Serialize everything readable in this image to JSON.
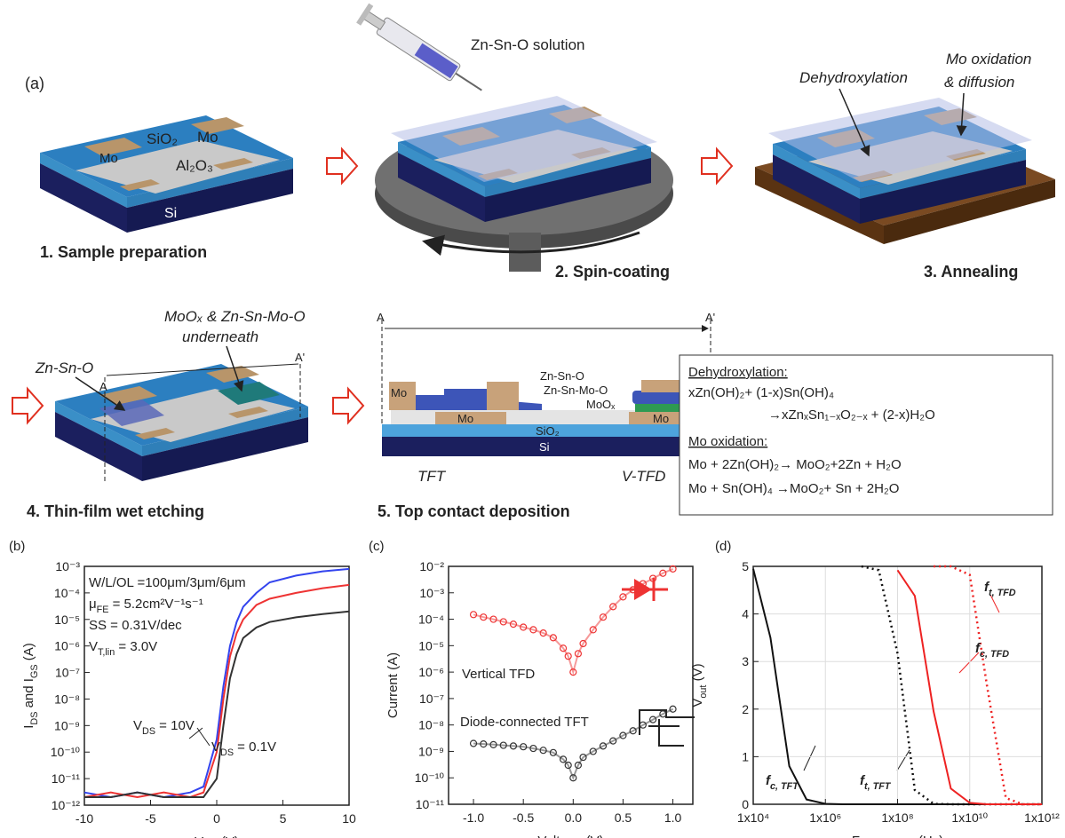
{
  "panel_a": {
    "label": "(a)",
    "steps": [
      "1. Sample preparation",
      "2. Spin-coating",
      "3. Annealing",
      "4. Thin-film wet etching",
      "5. Top contact deposition"
    ],
    "step1_labels": [
      "Mo",
      "SiO₂",
      "Mo",
      "Al₂O₃",
      "Si"
    ],
    "step2_labels": [
      "Zn-Sn-O solution"
    ],
    "step3_labels": [
      "Dehydroxylation",
      "Mo oxidation",
      "& diffusion"
    ],
    "step4_labels": [
      "Zn-Sn-O",
      "MoOₓ & Zn-Sn-Mo-O",
      "underneath",
      "A",
      "A'"
    ],
    "step5_labels": [
      "A",
      "A'",
      "Mo",
      "Zn-Sn-O",
      "Zn-Sn-Mo-O",
      "MoOₓ",
      "Mo",
      "Mo",
      "SiO₂",
      "Si",
      "TFT",
      "V-TFD"
    ],
    "equations": [
      "Dehydroxylation:",
      "xZn(OH)₂+ (1-x)Sn(OH)₄",
      "→xZnₓSn₁₋ₓO₂₋ₓ + (2-x)H₂O",
      "Mo oxidation:",
      "Mo + 2Zn(OH)₂→ MoO₂+2Zn + H₂O",
      "Mo + Sn(OH)₄ →MoO₂+ Sn + 2H₂O"
    ]
  },
  "chart_data": [
    {
      "type": "line",
      "panel_label": "(b)",
      "xlabel": [
        "V",
        "GS",
        " (V)"
      ],
      "ylabel": [
        "I",
        "DS",
        " and I",
        "GS",
        " (A)"
      ],
      "ylog": true,
      "xlim": [
        -10,
        10
      ],
      "ylim": [
        1e-12,
        0.001
      ],
      "xticks": [
        -10,
        -5,
        0,
        5,
        10
      ],
      "yticks": [
        {
          "value": 1e-12,
          "label": "10⁻¹²"
        },
        {
          "value": 1e-11,
          "label": "10⁻¹¹"
        },
        {
          "value": 1e-10,
          "label": "10⁻¹⁰"
        },
        {
          "value": 1e-09,
          "label": "10⁻⁹"
        },
        {
          "value": 1e-08,
          "label": "10⁻⁸"
        },
        {
          "value": 1e-07,
          "label": "10⁻⁷"
        },
        {
          "value": 1e-06,
          "label": "10⁻⁶"
        },
        {
          "value": 1e-05,
          "label": "10⁻⁵"
        },
        {
          "value": 0.0001,
          "label": "10⁻⁴"
        },
        {
          "value": 0.001,
          "label": "10⁻³"
        }
      ],
      "x": [
        -10,
        -8,
        -6,
        -4,
        -2,
        -1,
        0,
        0.5,
        1,
        1.5,
        2,
        3,
        4,
        6,
        8,
        10
      ],
      "series": [
        {
          "color": "#3344ee",
          "values": [
            3e-12,
            2e-12,
            3e-12,
            2e-12,
            3e-12,
            5e-12,
            3e-10,
            3e-08,
            1e-06,
            8e-06,
            3e-05,
            0.0001,
            0.00025,
            0.00045,
            0.00065,
            0.0008
          ]
        },
        {
          "color": "#ee3333",
          "values": [
            2e-12,
            3e-12,
            2e-12,
            3e-12,
            2e-12,
            3e-12,
            1e-10,
            1e-08,
            4e-07,
            3e-06,
            1e-05,
            3.5e-05,
            6e-05,
            0.0001,
            0.00015,
            0.0002
          ]
        },
        {
          "color": "#333333",
          "values": [
            2e-12,
            2e-12,
            3e-12,
            2e-12,
            2e-12,
            2e-12,
            1e-11,
            1e-09,
            6e-08,
            5e-07,
            2e-06,
            5e-06,
            8e-06,
            1.2e-05,
            1.6e-05,
            2e-05
          ]
        }
      ],
      "annotations": [
        {
          "text": [
            "W/L/OL =100μm/3μm/6μm"
          ],
          "color": "#222"
        },
        {
          "text": [
            "μ",
            "FE",
            " = 5.2cm²V⁻¹s⁻¹"
          ],
          "color": "#222"
        },
        {
          "text": [
            "SS = 0.31V/dec"
          ],
          "color": "#222"
        },
        {
          "text": [
            "V",
            "T,lin",
            " = 3.0V"
          ],
          "color": "#222"
        },
        {
          "text": [
            "V",
            "DS",
            " = 10V"
          ],
          "color": "#222"
        },
        {
          "text": [
            "V",
            "DS",
            " = 0.1V"
          ],
          "color": "#222"
        }
      ]
    },
    {
      "type": "line",
      "panel_label": "(c)",
      "xlabel": [
        "Voltage (V)"
      ],
      "ylabel": [
        "Current (A)"
      ],
      "ylog": true,
      "xlim": [
        -1.25,
        1.2
      ],
      "ylim": [
        1e-11,
        0.01
      ],
      "xticks": [
        {
          "value": -1,
          "label": "-1.0"
        },
        {
          "value": -0.5,
          "label": "-0.5"
        },
        {
          "value": 0,
          "label": "0.0"
        },
        {
          "value": 0.5,
          "label": "0.5"
        },
        {
          "value": 1,
          "label": "1.0"
        }
      ],
      "yticks": [
        {
          "value": 1e-11,
          "label": "10⁻¹¹"
        },
        {
          "value": 1e-10,
          "label": "10⁻¹⁰"
        },
        {
          "value": 1e-09,
          "label": "10⁻⁹"
        },
        {
          "value": 1e-08,
          "label": "10⁻⁸"
        },
        {
          "value": 1e-07,
          "label": "10⁻⁷"
        },
        {
          "value": 1e-06,
          "label": "10⁻⁶"
        },
        {
          "value": 1e-05,
          "label": "10⁻⁵"
        },
        {
          "value": 0.0001,
          "label": "10⁻⁴"
        },
        {
          "value": 0.001,
          "label": "10⁻³"
        },
        {
          "value": 0.01,
          "label": "10⁻²"
        }
      ],
      "marker": "o",
      "x": [
        -1,
        -0.9,
        -0.8,
        -0.7,
        -0.6,
        -0.5,
        -0.4,
        -0.3,
        -0.2,
        -0.1,
        -0.05,
        0,
        0.05,
        0.1,
        0.2,
        0.3,
        0.4,
        0.5,
        0.6,
        0.7,
        0.8,
        0.9,
        1
      ],
      "series": [
        {
          "color": "#ee3333",
          "values": [
            0.00015,
            0.00012,
            0.0001,
            8e-05,
            6.5e-05,
            5e-05,
            4e-05,
            3e-05,
            2e-05,
            8e-06,
            4e-06,
            1e-06,
            5e-06,
            1.2e-05,
            4e-05,
            0.00012,
            0.0003,
            0.0007,
            0.0013,
            0.0022,
            0.0035,
            0.0055,
            0.008
          ]
        },
        {
          "color": "#333333",
          "values": [
            2e-09,
            1.9e-09,
            1.8e-09,
            1.7e-09,
            1.6e-09,
            1.5e-09,
            1.3e-09,
            1.1e-09,
            9e-10,
            5e-10,
            3e-10,
            1e-10,
            3e-10,
            6e-10,
            1e-09,
            1.6e-09,
            2.5e-09,
            4e-09,
            6e-09,
            1e-08,
            1.6e-08,
            2.6e-08,
            4e-08
          ]
        }
      ],
      "annotations": [
        {
          "text": [
            "Vertical TFD"
          ],
          "color": "#ee3333"
        },
        {
          "text": [
            "Diode-connected TFT"
          ],
          "color": "#222"
        }
      ]
    },
    {
      "type": "line",
      "panel_label": "(d)",
      "xlabel": [
        "Frequency (Hz)"
      ],
      "ylabel": [
        "V",
        "out",
        " (V)"
      ],
      "xlog": true,
      "grid": true,
      "xlim": [
        10000,
        1000000000000
      ],
      "ylim": [
        0,
        5
      ],
      "xticks": [
        {
          "value": 10000,
          "label": "1x10⁴"
        },
        {
          "value": 1000000,
          "label": "1x10⁶"
        },
        {
          "value": 100000000,
          "label": "1x10⁸"
        },
        {
          "value": 10000000000,
          "label": "1x10¹⁰"
        },
        {
          "value": 1000000000000,
          "label": "1x10¹²"
        }
      ],
      "yticks": [
        0,
        1,
        2,
        3,
        4,
        5
      ],
      "x": [
        10000,
        30000,
        100000,
        300000,
        1000000,
        3000000,
        10000000,
        30000000,
        100000000,
        300000000,
        1000000000,
        3000000000,
        10000000000,
        30000000000,
        100000000000,
        300000000000,
        1000000000000
      ],
      "series": [
        {
          "color": "#111111",
          "linestyle": "solid",
          "values": [
            4.95,
            3.5,
            0.8,
            0.1,
            0.01,
            0,
            0,
            0,
            0,
            0,
            0,
            0,
            0,
            0,
            0,
            0,
            0
          ]
        },
        {
          "color": "#111111",
          "linestyle": "dotted",
          "values": [
            null,
            null,
            null,
            null,
            null,
            null,
            5,
            4.92,
            3.17,
            0.3,
            0.01,
            0,
            0,
            0,
            0,
            0,
            0
          ]
        },
        {
          "color": "#ee2222",
          "linestyle": "solid",
          "values": [
            null,
            null,
            null,
            null,
            null,
            null,
            null,
            null,
            4.92,
            4.38,
            1.95,
            0.33,
            0.03,
            0,
            0,
            0,
            0
          ]
        },
        {
          "color": "#ee2222",
          "linestyle": "dotted",
          "values": [
            null,
            null,
            null,
            null,
            null,
            null,
            null,
            null,
            null,
            null,
            5,
            5,
            4.82,
            2.5,
            0.13,
            0,
            0
          ]
        }
      ],
      "annotations": [
        {
          "text": [
            "f",
            "c, TFT"
          ],
          "color": "#111111"
        },
        {
          "text": [
            "f",
            "t, TFT"
          ],
          "color": "#111111"
        },
        {
          "text": [
            "f",
            "t, TFD"
          ],
          "color": "#ee2222"
        },
        {
          "text": [
            "f",
            "c, TFD"
          ],
          "color": "#ee2222"
        }
      ]
    }
  ]
}
